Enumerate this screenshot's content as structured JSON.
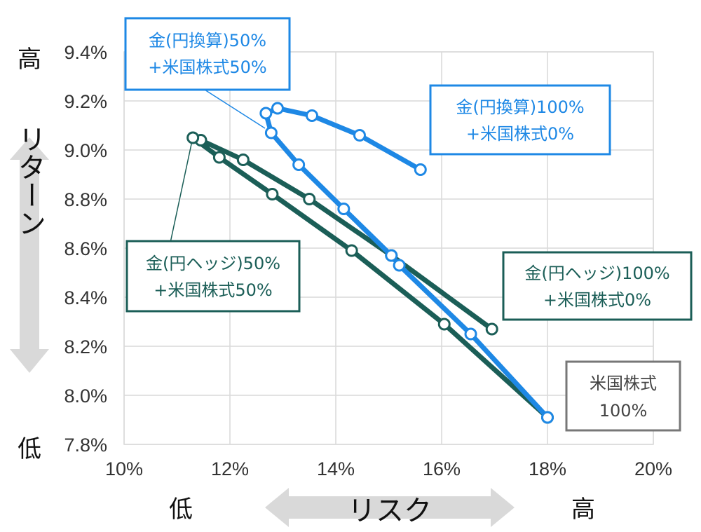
{
  "chart_data": {
    "type": "line",
    "x_axis": {
      "min": 10,
      "max": 20,
      "unit": "%",
      "ticks": [
        "10%",
        "12%",
        "14%",
        "16%",
        "18%",
        "20%"
      ],
      "low_label": "低",
      "high_label": "高",
      "title": "リスク"
    },
    "y_axis": {
      "min": 7.8,
      "max": 9.4,
      "unit": "%",
      "ticks": [
        "7.8%",
        "8.0%",
        "8.2%",
        "8.4%",
        "8.6%",
        "8.8%",
        "9.0%",
        "9.2%",
        "9.4%"
      ],
      "low_label": "低",
      "high_label": "高",
      "title": "リターン"
    },
    "grid": true,
    "colors": {
      "blue": "#1e88e5",
      "teal": "#1b5e57",
      "gray_box": "#777777",
      "arrow": "#d9d9d9",
      "grid": "#d9d9d9"
    },
    "series": [
      {
        "color": "blue",
        "points": [
          [
            15.6,
            8.92
          ],
          [
            14.45,
            9.06
          ],
          [
            13.55,
            9.14
          ],
          [
            12.9,
            9.17
          ],
          [
            12.68,
            9.15
          ],
          [
            12.78,
            9.07
          ],
          [
            13.3,
            8.94
          ],
          [
            14.15,
            8.76
          ],
          [
            15.05,
            8.57
          ],
          [
            15.2,
            8.53
          ],
          [
            16.55,
            8.25
          ],
          [
            18.0,
            7.91
          ]
        ]
      },
      {
        "color": "teal",
        "points": [
          [
            16.95,
            8.27
          ],
          [
            15.05,
            8.57
          ],
          [
            13.5,
            8.8
          ],
          [
            12.25,
            8.96
          ],
          [
            11.45,
            9.04
          ],
          [
            11.3,
            9.05
          ],
          [
            11.8,
            8.97
          ],
          [
            12.8,
            8.82
          ],
          [
            14.3,
            8.59
          ],
          [
            16.05,
            8.29
          ],
          [
            18.0,
            7.91
          ]
        ]
      }
    ],
    "annotations": [
      {
        "lines": [
          "金(円換算)50%",
          "+米国株式50%"
        ],
        "color": "blue",
        "target": [
          12.68,
          9.15
        ]
      },
      {
        "lines": [
          "金(円換算)100%",
          "+米国株式0%"
        ],
        "color": "blue"
      },
      {
        "lines": [
          "金(円ヘッジ)50%",
          "+米国株式50%"
        ],
        "color": "teal",
        "target": [
          11.3,
          9.05
        ]
      },
      {
        "lines": [
          "金(円ヘッジ)100%",
          "+米国株式0%"
        ],
        "color": "teal"
      },
      {
        "lines": [
          "米国株式",
          "100%"
        ],
        "color": "gray_box"
      }
    ]
  }
}
